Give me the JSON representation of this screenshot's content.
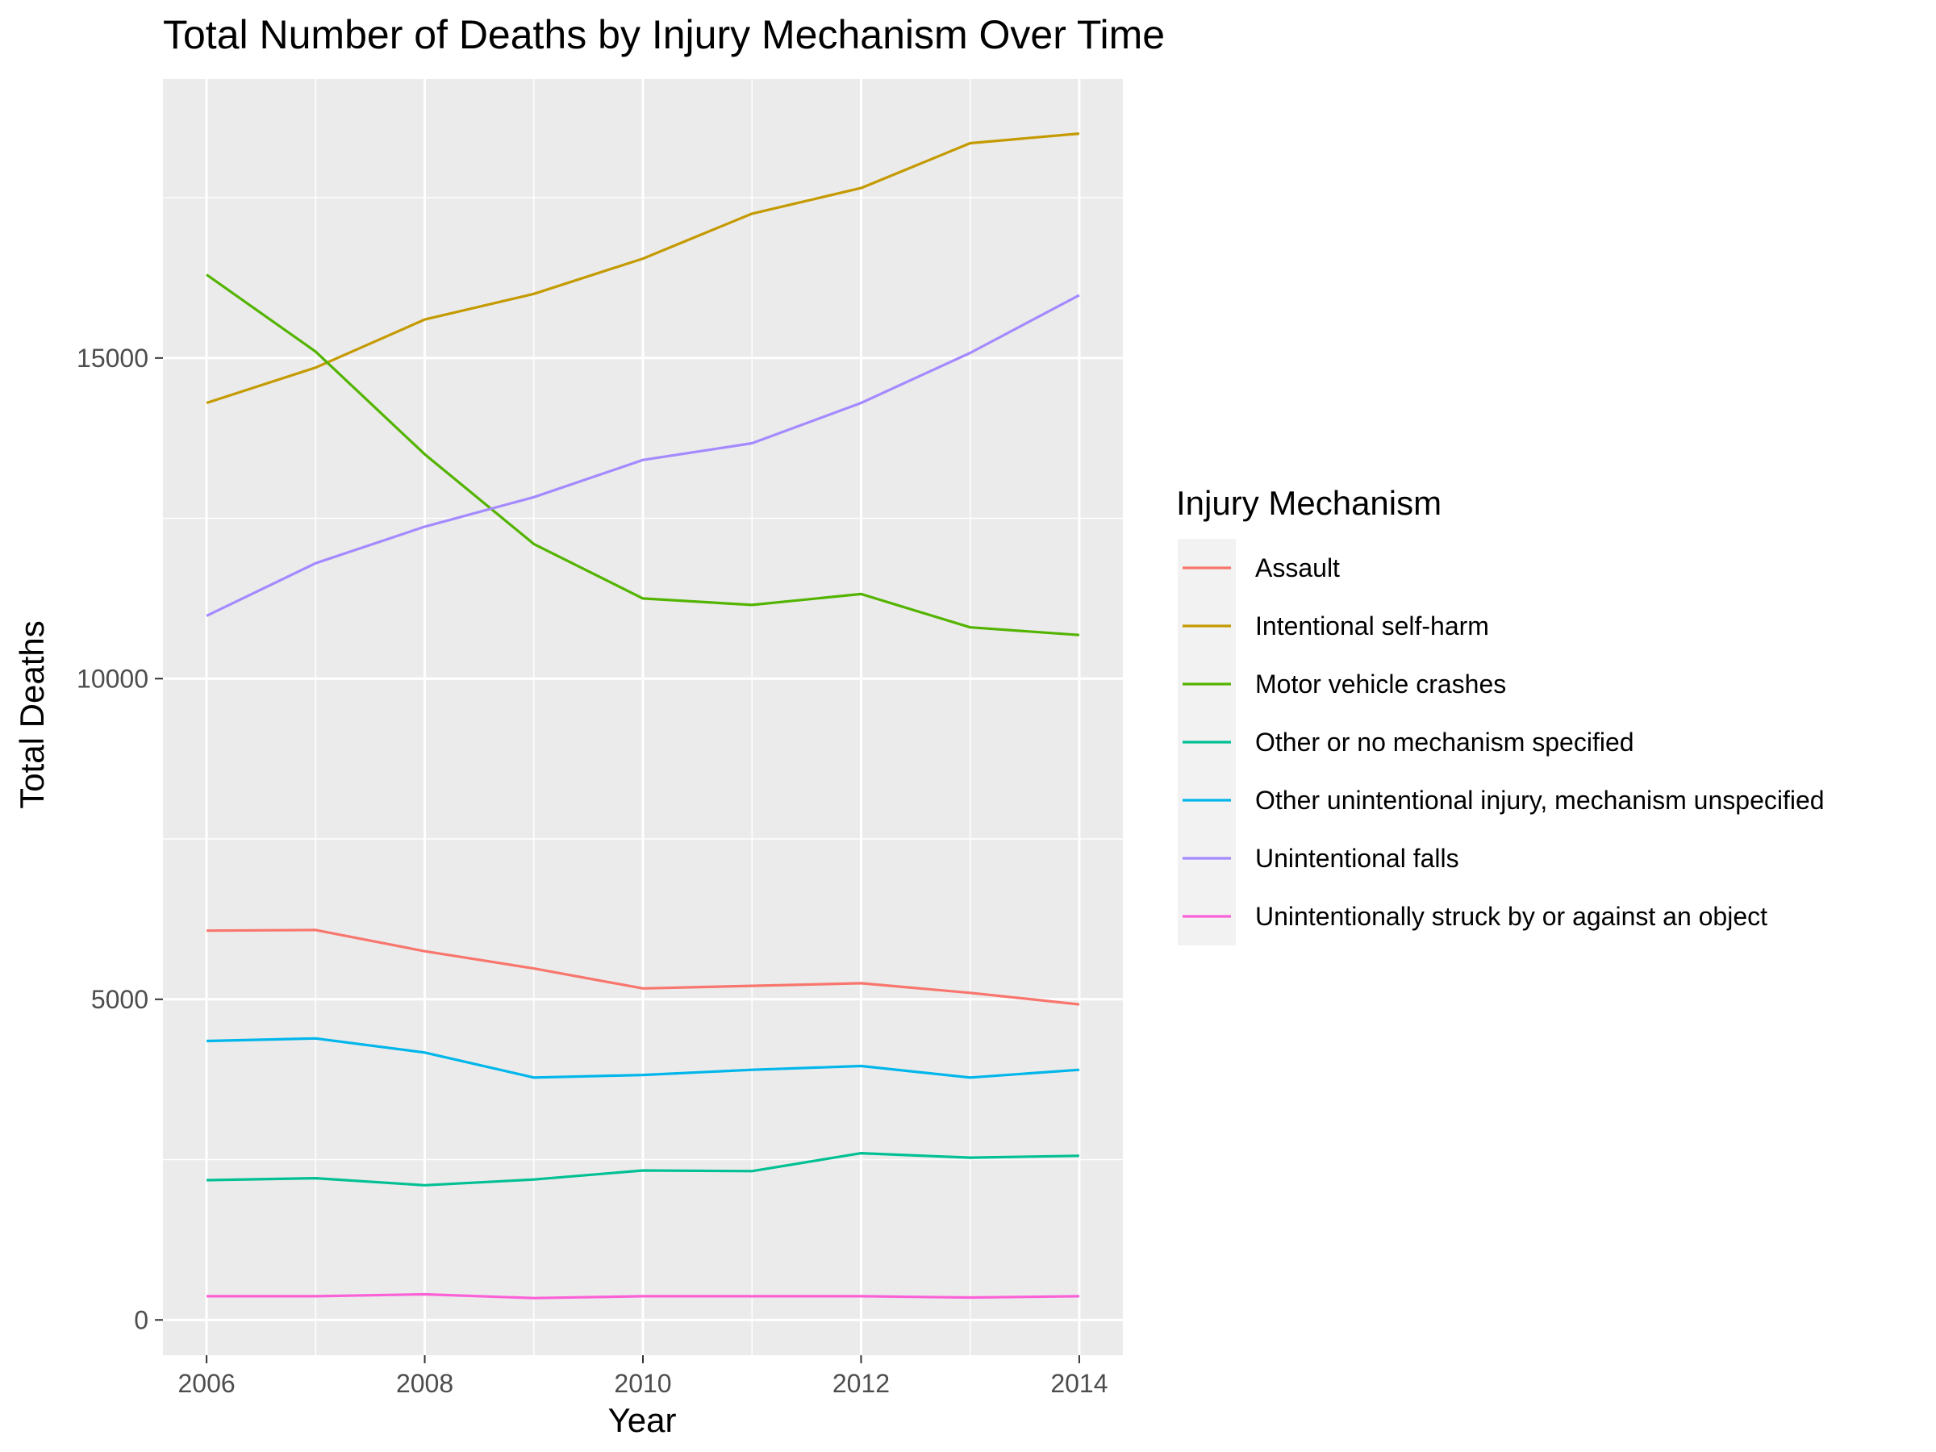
{
  "chart_data": {
    "type": "line",
    "title": "Total Number of Deaths by Injury Mechanism Over Time",
    "xlabel": "Year",
    "ylabel": "Total Deaths",
    "x": [
      2006,
      2007,
      2008,
      2009,
      2010,
      2011,
      2012,
      2013,
      2014
    ],
    "xlim": [
      2005.6,
      2014.4
    ],
    "ylim": [
      -550,
      19350
    ],
    "x_ticks": [
      2006,
      2008,
      2010,
      2012,
      2014
    ],
    "y_ticks": [
      0,
      5000,
      10000,
      15000
    ],
    "grid": true,
    "legend": {
      "title": "Injury Mechanism",
      "placement": "right"
    },
    "series": [
      {
        "name": "Assault",
        "color": "#F8766D",
        "values": [
          6070,
          6080,
          5750,
          5480,
          5170,
          5210,
          5250,
          5100,
          4920
        ]
      },
      {
        "name": "Intentional self-harm",
        "color": "#C49A00",
        "values": [
          14300,
          14850,
          15600,
          16000,
          16550,
          17250,
          17650,
          18350,
          18500
        ]
      },
      {
        "name": "Motor vehicle crashes",
        "color": "#53B400",
        "values": [
          16300,
          15100,
          13500,
          12100,
          11250,
          11150,
          11320,
          10800,
          10680
        ]
      },
      {
        "name": "Other or no mechanism specified",
        "color": "#00C094",
        "values": [
          2180,
          2210,
          2100,
          2190,
          2330,
          2320,
          2600,
          2530,
          2560
        ]
      },
      {
        "name": "Other unintentional injury, mechanism unspecified",
        "color": "#00B6EB",
        "values": [
          4350,
          4390,
          4170,
          3780,
          3820,
          3900,
          3960,
          3780,
          3900
        ]
      },
      {
        "name": "Unintentional falls",
        "color": "#A58AFF",
        "values": [
          10980,
          11800,
          12370,
          12830,
          13410,
          13670,
          14300,
          15080,
          15980
        ]
      },
      {
        "name": "Unintentionally struck by or against an object",
        "color": "#FB61D7",
        "values": [
          370,
          370,
          400,
          340,
          370,
          370,
          370,
          350,
          370
        ]
      }
    ]
  }
}
